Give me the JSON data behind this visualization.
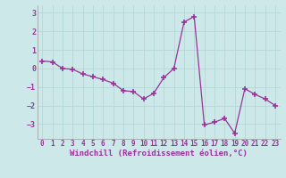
{
  "x": [
    0,
    1,
    2,
    3,
    4,
    5,
    6,
    7,
    8,
    9,
    10,
    11,
    12,
    13,
    14,
    15,
    16,
    17,
    18,
    19,
    20,
    21,
    22,
    23
  ],
  "y": [
    0.4,
    0.35,
    0.0,
    -0.05,
    -0.3,
    -0.45,
    -0.6,
    -0.8,
    -1.2,
    -1.25,
    -1.65,
    -1.35,
    -0.5,
    0.0,
    2.5,
    2.8,
    -3.05,
    -2.9,
    -2.7,
    -3.5,
    -1.1,
    -1.4,
    -1.65,
    -2.0
  ],
  "line_color": "#993399",
  "marker": "+",
  "markersize": 4,
  "markeredgewidth": 1.2,
  "linewidth": 0.9,
  "bg_color": "#cce8e8",
  "grid_color": "#b0d4d4",
  "xlabel": "Windchill (Refroidissement éolien,°C)",
  "xlabel_color": "#993399",
  "xlabel_fontsize": 6.5,
  "tick_color": "#993399",
  "tick_fontsize": 5.5,
  "ylim": [
    -3.8,
    3.4
  ],
  "xlim": [
    -0.5,
    23.5
  ],
  "yticks": [
    -3,
    -2,
    -1,
    0,
    1,
    2,
    3
  ],
  "xticks": [
    0,
    1,
    2,
    3,
    4,
    5,
    6,
    7,
    8,
    9,
    10,
    11,
    12,
    13,
    14,
    15,
    16,
    17,
    18,
    19,
    20,
    21,
    22,
    23
  ]
}
